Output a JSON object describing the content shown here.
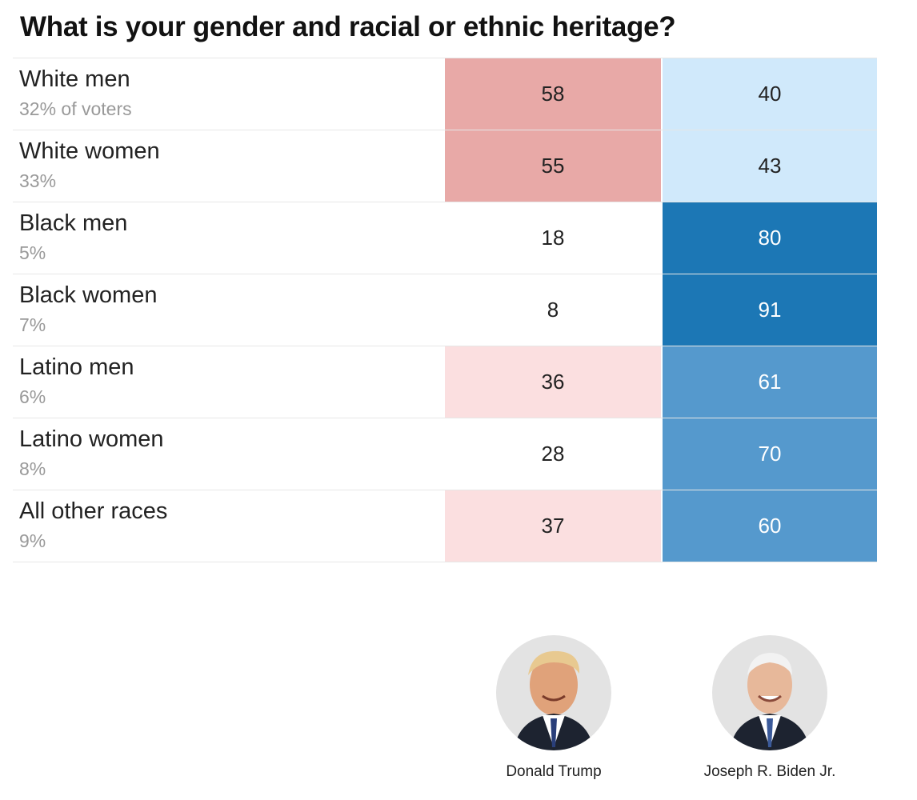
{
  "title": "What is your gender and racial or ethnic heritage?",
  "candidates": {
    "trump": "Donald Trump",
    "biden": "Joseph R. Biden Jr."
  },
  "colors": {
    "trump_strong": "#e8a9a7",
    "trump_light": "#fbdfe0",
    "biden_light": "#d0e9fb",
    "biden_mid": "#5599cd",
    "biden_strong": "#1c77b5"
  },
  "chart_data": {
    "type": "table",
    "title": "What is your gender and racial or ethnic heritage?",
    "columns": [
      "Donald Trump",
      "Joseph R. Biden Jr."
    ],
    "rows": [
      {
        "group": "White men",
        "share": "32% of voters",
        "trump": 58,
        "biden": 40
      },
      {
        "group": "White women",
        "share": "33%",
        "trump": 55,
        "biden": 43
      },
      {
        "group": "Black men",
        "share": "5%",
        "trump": 18,
        "biden": 80
      },
      {
        "group": "Black women",
        "share": "7%",
        "trump": 8,
        "biden": 91
      },
      {
        "group": "Latino men",
        "share": "6%",
        "trump": 36,
        "biden": 61
      },
      {
        "group": "Latino women",
        "share": "8%",
        "trump": 28,
        "biden": 70
      },
      {
        "group": "All other races",
        "share": "9%",
        "trump": 37,
        "biden": 60
      }
    ]
  }
}
